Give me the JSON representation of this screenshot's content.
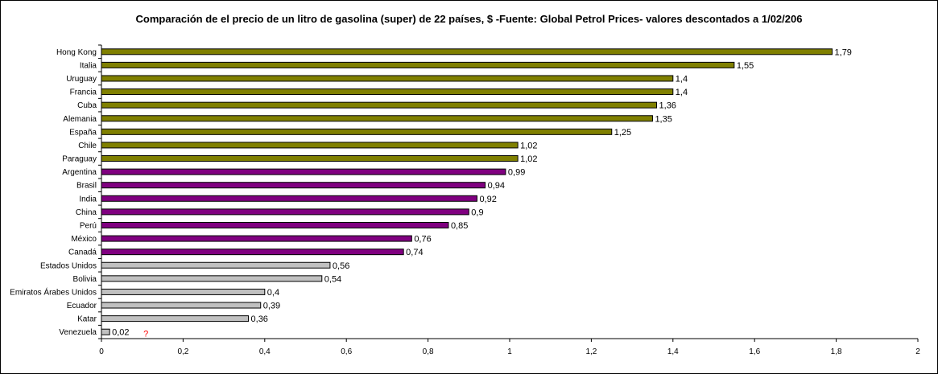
{
  "chart_data": {
    "type": "bar",
    "orientation": "horizontal",
    "title": "Comparación de el precio de un litro de gasolina (super) de 22 países, $ -Fuente: Global Petrol Prices- valores descontados a 1/02/206",
    "xlabel": "",
    "ylabel": "",
    "xlim": [
      0,
      2
    ],
    "x_ticks": [
      "0",
      "0,2",
      "0,4",
      "0,6",
      "0,8",
      "1",
      "1,2",
      "1,4",
      "1,6",
      "1,8",
      "2"
    ],
    "grid": false,
    "legend": "none",
    "categories": [
      "Hong Kong",
      "Italia",
      "Uruguay",
      "Francia",
      "Cuba",
      "Alemania",
      "España",
      "Chile",
      "Paraguay",
      "Argentina",
      "Brasil",
      "India",
      "China",
      "Perú",
      "México",
      "Canadá",
      "Estados Unidos",
      "Bolivia",
      "Emiratos Árabes Unidos",
      "Ecuador",
      "Katar",
      "Venezuela"
    ],
    "values": [
      1.79,
      1.55,
      1.4,
      1.4,
      1.36,
      1.35,
      1.25,
      1.02,
      1.02,
      0.99,
      0.94,
      0.92,
      0.9,
      0.85,
      0.76,
      0.74,
      0.56,
      0.54,
      0.4,
      0.39,
      0.36,
      0.02
    ],
    "value_labels": [
      "1,79",
      "1,55",
      "1,4",
      "1,4",
      "1,36",
      "1,35",
      "1,25",
      "1,02",
      "1,02",
      "0,99",
      "0,94",
      "0,92",
      "0,9",
      "0,85",
      "0,76",
      "0,74",
      "0,56",
      "0,54",
      "0,4",
      "0,39",
      "0,36",
      "0,02"
    ],
    "bar_colors": [
      "#808000",
      "#808000",
      "#808000",
      "#808000",
      "#808000",
      "#808000",
      "#808000",
      "#808000",
      "#808000",
      "#800080",
      "#800080",
      "#800080",
      "#800080",
      "#800080",
      "#800080",
      "#800080",
      "#c0c0c0",
      "#c0c0c0",
      "#c0c0c0",
      "#c0c0c0",
      "#c0c0c0",
      "#c0c0c0"
    ],
    "annotation": {
      "text": "?",
      "near": "Venezuela",
      "color": "#ff0000"
    }
  }
}
